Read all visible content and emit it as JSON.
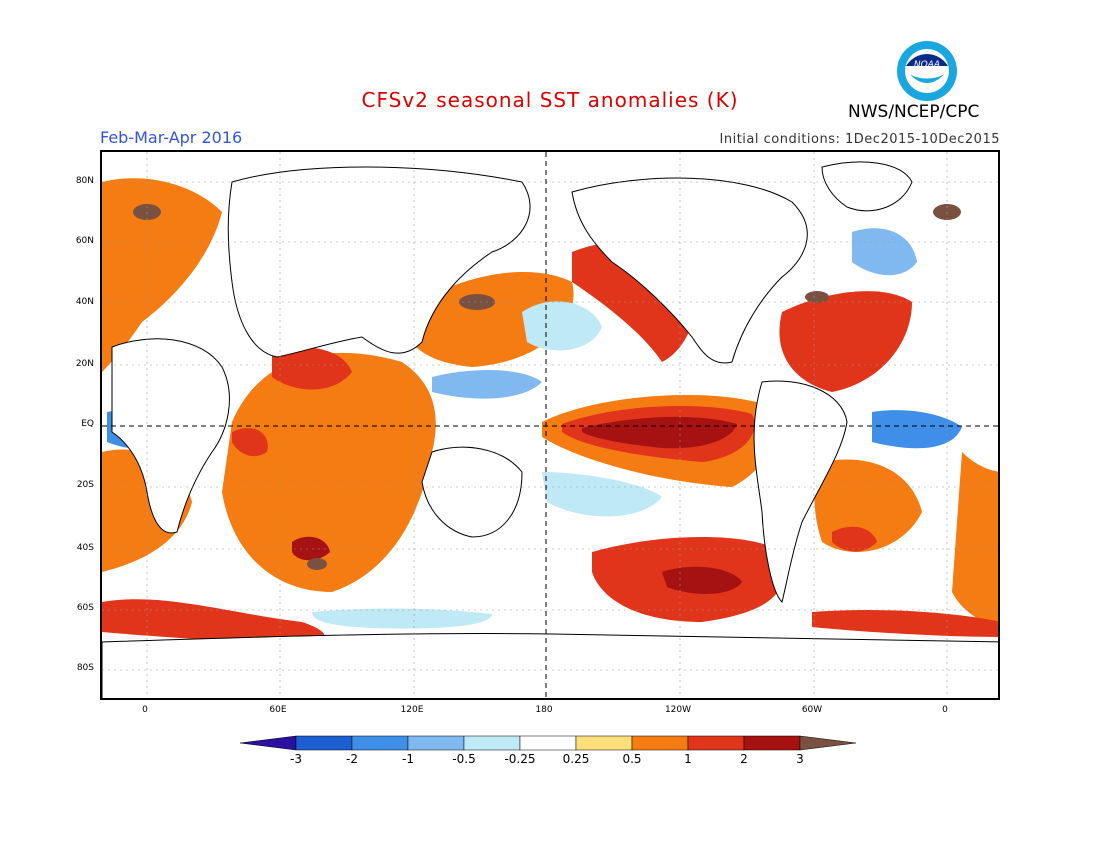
{
  "header": {
    "title": "CFSv2 seasonal SST anomalies (K)",
    "season": "Feb-Mar-Apr 2016",
    "initial_conditions": "Initial conditions: 1Dec2015-10Dec2015",
    "agency": "NWS/NCEP/CPC",
    "logo_text": "NOAA"
  },
  "colors": {
    "title": "#dd0000",
    "season": "#3355dd",
    "scale": [
      "#2a0fa0",
      "#1d5fd0",
      "#3f8ee8",
      "#7fb9f0",
      "#bfe9f5",
      "#ffffff",
      "#fcdf7a",
      "#f47c12",
      "#e0351a",
      "#a61212",
      "#7a5040"
    ]
  },
  "map": {
    "lat_labels": [
      "80N",
      "60N",
      "40N",
      "20N",
      "EQ",
      "20S",
      "40S",
      "60S",
      "80S"
    ],
    "lon_labels": [
      "0",
      "60E",
      "120E",
      "180",
      "120W",
      "60W",
      "0"
    ]
  },
  "legend": {
    "labels": [
      "-3",
      "-2",
      "-1",
      "-0.5",
      "-0.25",
      "0.25",
      "0.5",
      "1",
      "2",
      "3"
    ]
  }
}
